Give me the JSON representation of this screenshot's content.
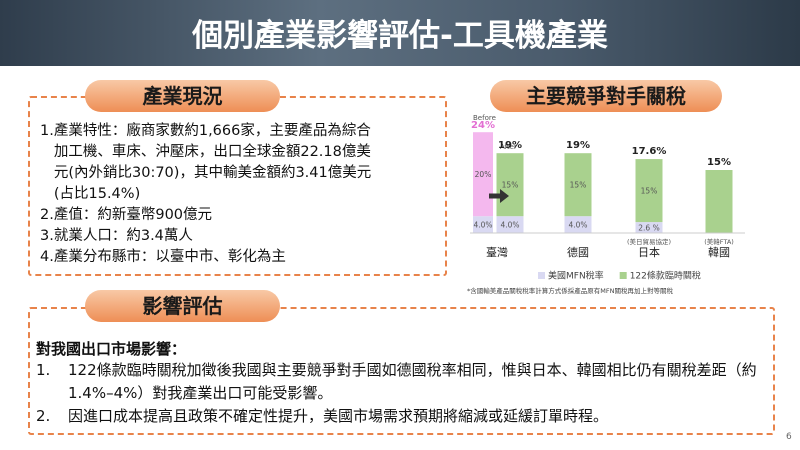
{
  "header": {
    "title": "個別產業影響評估-工具機產業"
  },
  "status": {
    "heading": "產業現況",
    "items": [
      {
        "marker": "1.",
        "text": "產業特性：廠商家數約1,666家，主要產品為綜合加工機、車床、沖壓床，出口全球金額22.18億美元(內外銷比30:70)，其中輸美金額約3.41億美元(占比15.4%)"
      },
      {
        "marker": "2.",
        "text": "產值：約新臺幣900億元"
      },
      {
        "marker": "3.",
        "text": "就業人口：約3.4萬人"
      },
      {
        "marker": "4.",
        "text": "產業分布縣市：以臺中市、彰化為主"
      }
    ]
  },
  "chart_heading": "主要競爭對手關稅",
  "chart_data": {
    "type": "bar",
    "stacked": true,
    "categories": [
      "臺灣",
      "德國",
      "日本",
      "韓國"
    ],
    "category_notes": [
      null,
      null,
      "(美日貿易協定)",
      "(美韓FTA)"
    ],
    "after_label": "After",
    "series": [
      {
        "name": "美國MFN稅率",
        "color": "#d9d9f2",
        "values": [
          4.0,
          4.0,
          2.6,
          0.0
        ],
        "value_labels": [
          "4.0%",
          "4.0%",
          "2.6 %",
          "0.0%"
        ]
      },
      {
        "name": "122條款臨時關稅",
        "color": "#a9d18e",
        "values": [
          15,
          15,
          15,
          15
        ],
        "value_labels": [
          "15%",
          "15%",
          "15%",
          null
        ]
      }
    ],
    "totals": {
      "values": [
        19,
        19,
        17.6,
        15
      ],
      "value_labels": [
        "19%",
        "19%",
        "17.6%",
        "15%"
      ]
    },
    "before": {
      "label": "Before",
      "color": "#f4b8ee",
      "base": 4.0,
      "base_label": "4.0%",
      "value": 20,
      "value_label": "20%",
      "total": 24,
      "total_label": "24%"
    },
    "ylim": [
      0,
      25
    ],
    "legend": "bottom",
    "note": "*含國輸美產品關稅稅率計算方式係採產品原有MFN關稅再加上對等關稅"
  },
  "impact": {
    "heading": "影響評估",
    "subheading": "對我國出口市場影響：",
    "items": [
      {
        "marker": "1.",
        "text": "122條款臨時關稅加徵後我國與主要競爭對手國如德國稅率相同，惟與日本、韓國相比仍有關稅差距（約1.4%–4%）對我產業出口可能受影響。"
      },
      {
        "marker": "2.",
        "text": "因進口成本提高且政策不確定性提升，美國市場需求預期將縮減或延緩訂單時程。"
      }
    ]
  },
  "page_number": "6"
}
